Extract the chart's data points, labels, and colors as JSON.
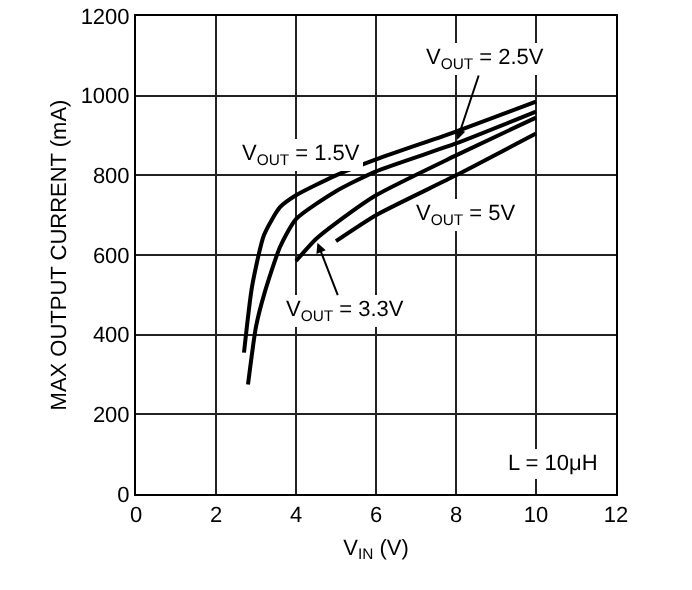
{
  "chart_data": {
    "type": "line",
    "xlabel": "V$_{IN}$ (V)",
    "ylabel": "MAX OUTPUT CURRENT (mA)",
    "xlim": [
      0,
      12
    ],
    "xticks": [
      0,
      2,
      4,
      6,
      8,
      10,
      12
    ],
    "ylim": [
      0,
      1200
    ],
    "yticks": [
      0,
      200,
      400,
      600,
      800,
      1000,
      1200
    ],
    "grid": true,
    "legend": false,
    "marker": "none",
    "line_style": "solid",
    "series": [
      {
        "name": "V$_{OUT}$ = 1.5V",
        "color": "#000000",
        "x": [
          2.7,
          2.9,
          3.2,
          3.6,
          4,
          5,
          6,
          8,
          10
        ],
        "values": [
          355,
          520,
          650,
          720,
          750,
          800,
          840,
          910,
          985
        ]
      },
      {
        "name": "V$_{OUT}$ = 2.5V",
        "color": "#000000",
        "x": [
          2.8,
          3,
          3.2,
          3.6,
          4,
          5,
          6,
          8,
          10
        ],
        "values": [
          275,
          420,
          500,
          620,
          690,
          760,
          810,
          880,
          960
        ]
      },
      {
        "name": "V$_{OUT}$ = 3.3V",
        "color": "#000000",
        "x": [
          4,
          4.5,
          5,
          6,
          8,
          10
        ],
        "values": [
          585,
          640,
          680,
          750,
          850,
          945
        ]
      },
      {
        "name": "V$_{OUT}$ = 5V",
        "color": "#000000",
        "x": [
          5,
          6,
          8,
          10
        ],
        "values": [
          635,
          700,
          800,
          905
        ]
      }
    ],
    "annotations": [
      "L = 10μH"
    ]
  }
}
